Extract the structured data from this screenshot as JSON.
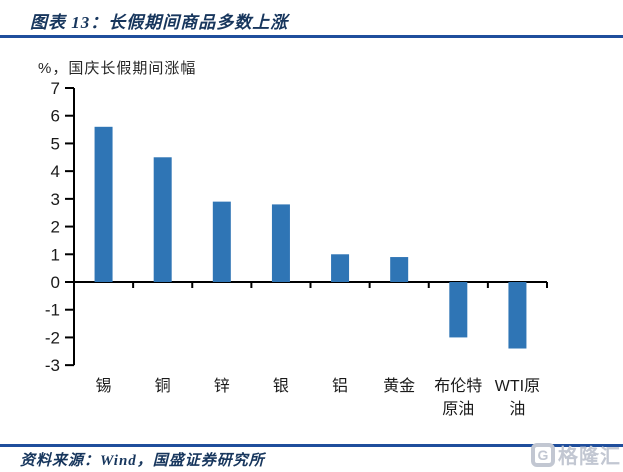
{
  "header": {
    "title": "图表 13：长假期间商品多数上涨"
  },
  "chart": {
    "subtitle": "%，国庆长假期间涨幅"
  },
  "chart_data": {
    "type": "bar",
    "title": "长假期间商品多数上涨",
    "subtitle": "%，国庆长假期间涨幅",
    "categories": [
      "锡",
      "铜",
      "锌",
      "银",
      "铝",
      "黄金",
      "布伦特原油",
      "WTI原油"
    ],
    "category_label_lines": [
      [
        "锡"
      ],
      [
        "铜"
      ],
      [
        "锌"
      ],
      [
        "银"
      ],
      [
        "铝"
      ],
      [
        "黄金"
      ],
      [
        "布伦特",
        "原油"
      ],
      [
        "WTI原",
        "油"
      ]
    ],
    "values": [
      5.6,
      4.5,
      2.9,
      2.8,
      1.0,
      0.9,
      -2.0,
      -2.4
    ],
    "xlabel": "",
    "ylabel": "%",
    "ylim": [
      -3,
      7
    ],
    "ytick_step": 1,
    "yticks": [
      7,
      6,
      5,
      4,
      3,
      2,
      1,
      0,
      -1,
      -2,
      -3
    ],
    "grid": false,
    "legend_position": "none",
    "bar_color": "#2F75B5",
    "axis_color": "#000000",
    "tick_label_color": "#1a1a1a"
  },
  "footer": {
    "source_text": "资料来源：Wind，国盛证券研究所",
    "watermark": {
      "icon": "G",
      "text": "格隆汇"
    }
  },
  "colors": {
    "title_navy": "#17365D",
    "rule_blue": "#1F4E9C",
    "bar_blue": "#2F75B5",
    "watermark_gray": "#C2C7D2",
    "background": "#FFFFFF"
  }
}
